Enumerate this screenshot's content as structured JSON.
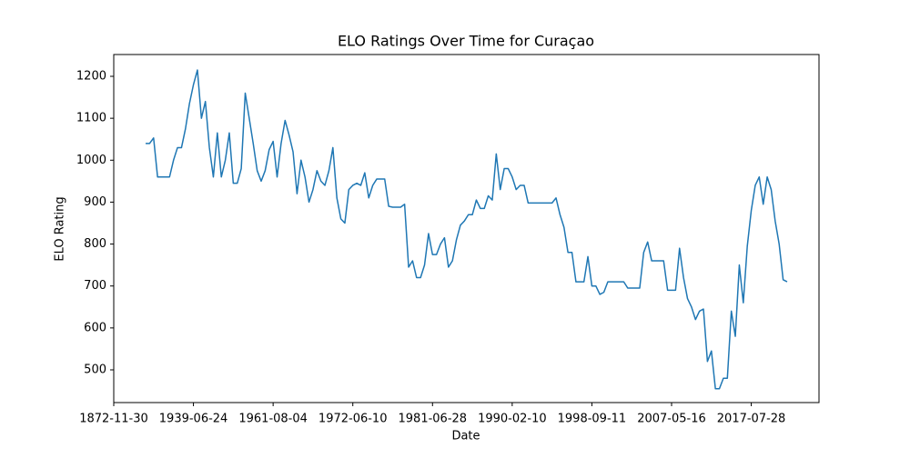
{
  "chart_data": {
    "type": "line",
    "title": "ELO Ratings Over Time for Curaçao",
    "x_label": "Date",
    "y_label": "ELO Rating",
    "xlim": [
      -8,
      169
    ],
    "xticks": [
      {
        "value": -8,
        "label": "1872-11-30"
      },
      {
        "value": 12,
        "label": "1939-06-24"
      },
      {
        "value": 32,
        "label": "1961-08-04"
      },
      {
        "value": 52,
        "label": "1972-06-10"
      },
      {
        "value": 72,
        "label": "1981-06-28"
      },
      {
        "value": 92,
        "label": "1990-02-10"
      },
      {
        "value": 112,
        "label": "1998-09-11"
      },
      {
        "value": 132,
        "label": "2007-05-16"
      },
      {
        "value": 152,
        "label": "2017-07-28"
      }
    ],
    "ylim": [
      422,
      1252
    ],
    "yticks": [
      500,
      600,
      700,
      800,
      900,
      1000,
      1100,
      1200
    ],
    "color": "#1f77b4",
    "values": [
      1040,
      1040,
      1053,
      960,
      960,
      960,
      960,
      1000,
      1030,
      1030,
      1075,
      1135,
      1180,
      1215,
      1100,
      1140,
      1030,
      960,
      1065,
      960,
      1000,
      1065,
      945,
      945,
      980,
      1160,
      1100,
      1040,
      975,
      950,
      975,
      1025,
      1045,
      960,
      1040,
      1095,
      1060,
      1020,
      920,
      1000,
      960,
      900,
      930,
      975,
      950,
      940,
      975,
      1030,
      910,
      860,
      850,
      930,
      940,
      945,
      940,
      970,
      910,
      940,
      955,
      955,
      955,
      890,
      888,
      888,
      888,
      895,
      745,
      760,
      720,
      720,
      750,
      825,
      775,
      775,
      800,
      815,
      745,
      760,
      810,
      845,
      855,
      870,
      870,
      905,
      885,
      885,
      915,
      905,
      1015,
      930,
      980,
      980,
      960,
      930,
      940,
      940,
      898,
      898,
      898,
      898,
      898,
      898,
      898,
      910,
      870,
      840,
      780,
      780,
      710,
      710,
      710,
      770,
      700,
      700,
      680,
      685,
      710,
      710,
      710,
      710,
      710,
      695,
      695,
      695,
      695,
      780,
      805,
      760,
      760,
      760,
      760,
      690,
      690,
      690,
      790,
      720,
      670,
      650,
      620,
      640,
      645,
      520,
      545,
      455,
      455,
      480,
      480,
      640,
      580,
      750,
      660,
      795,
      880,
      940,
      960,
      895,
      960,
      930,
      855,
      800,
      715,
      710
    ]
  }
}
